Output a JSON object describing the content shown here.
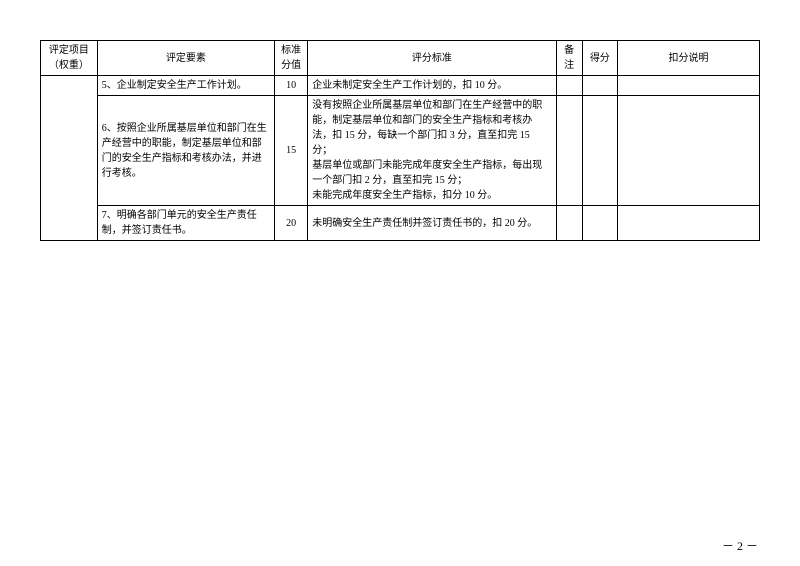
{
  "table": {
    "headers": {
      "project": "评定项目（权重）",
      "element": "评定要素",
      "score": "标准分值",
      "criteria": "评分标准",
      "note": "备注",
      "got": "得分",
      "reason": "扣分说明"
    },
    "rows": [
      {
        "element": "5、企业制定安全生产工作计划。",
        "score": "10",
        "criteria": "企业未制定安全生产工作计划的，扣 10 分。"
      },
      {
        "element": "6、按照企业所属基层单位和部门在生产经营中的职能，制定基层单位和部门的安全生产指标和考核办法，并进行考核。",
        "score": "15",
        "criteria": "没有按照企业所属基层单位和部门在生产经营中的职能，制定基层单位和部门的安全生产指标和考核办法，扣 15 分，每缺一个部门扣 3 分，直至扣完 15 分；\n基层单位或部门未能完成年度安全生产指标，每出现一个部门扣 2 分，直至扣完 15 分；\n未能完成年度安全生产指标，扣分 10 分。"
      },
      {
        "element": "7、明确各部门单元的安全生产责任制，并签订责任书。",
        "score": "20",
        "criteria": "未明确安全生产责任制并签订责任书的，扣 20 分。"
      }
    ]
  },
  "pageNumber": "－ 2 －"
}
